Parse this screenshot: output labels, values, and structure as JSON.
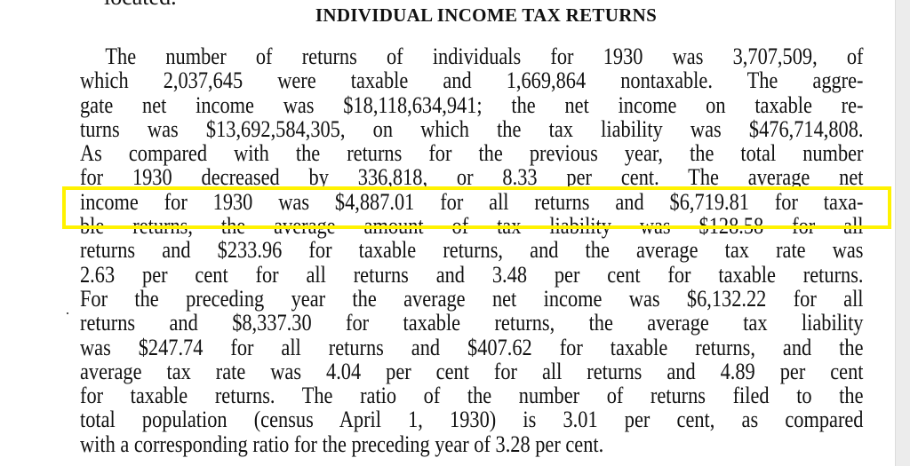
{
  "document": {
    "cut_top_text": "located.",
    "heading": "INDIVIDUAL INCOME TAX RETURNS",
    "lines": [
      "The number of returns of individuals for 1930 was 3,707,509, of",
      "which 2,037,645 were taxable and 1,669,864 nontaxable. The aggre-",
      "gate net income was $18,118,634,941; the net income on taxable re-",
      "turns was $13,692,584,305, on which the tax liability was $476,714,808.",
      "As compared with the returns for the previous year, the total number",
      "for 1930 decreased by 336,818, or 8.33 per cent. The average net",
      "income for 1930 was $4,887.01 for all returns and $6,719.81 for taxa-",
      "ble returns, the average amount of tax liability was $128.58 for all",
      "returns and $233.96 for taxable returns, and the average tax rate was",
      "2.63 per cent for all returns and 3.48 per cent for taxable returns.",
      "For the preceding year the average net income was $6,132.22 for all",
      "returns and $8,337.30 for taxable returns, the average tax liability",
      "was $247.74 for all returns and $407.62 for taxable returns, and the",
      "average tax rate was 4.04 per cent for all returns and 4.89 per cent",
      "for taxable returns. The ratio of the number of returns filed to the",
      "total population (census April 1, 1930) is 3.01 per cent, as compared",
      "with a corresponding ratio for the preceding year of 3.28 per cent."
    ],
    "highlight_color": "#fff200"
  }
}
